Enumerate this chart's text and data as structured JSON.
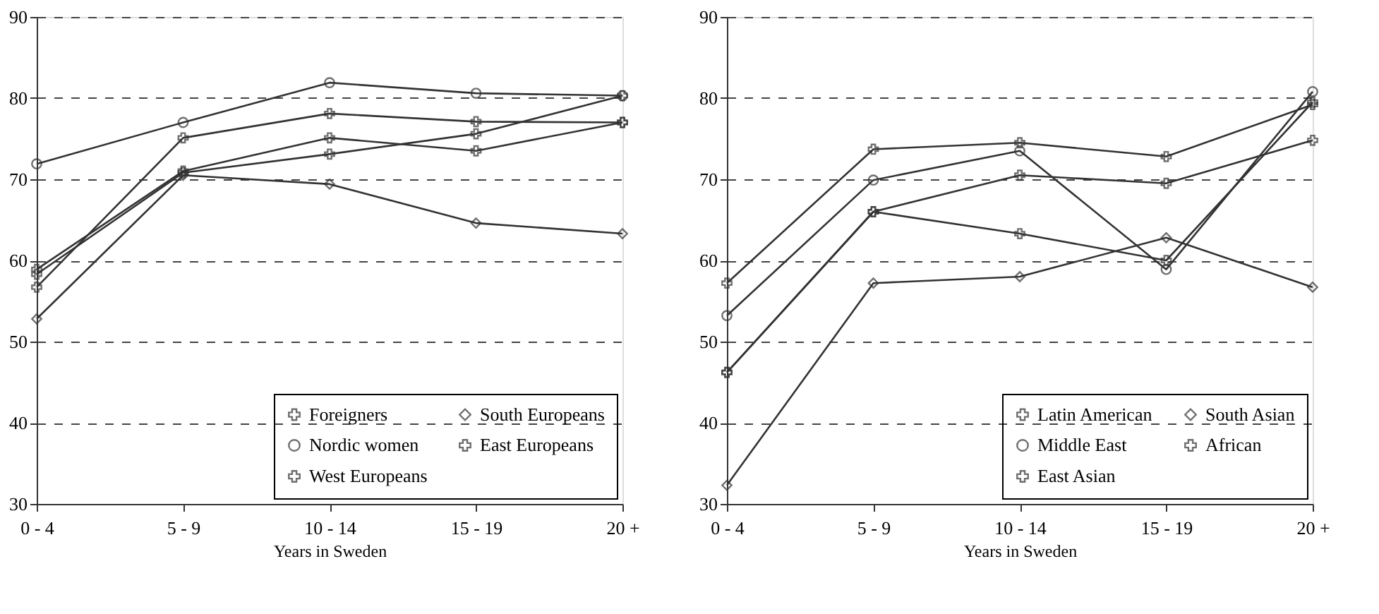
{
  "chart_data": [
    {
      "type": "line",
      "xlabel": "Years in Sweden",
      "categories": [
        "0 - 4",
        "5 - 9",
        "10 - 14",
        "15 - 19",
        "20 +"
      ],
      "ylim": [
        30,
        90
      ],
      "yticks": [
        30,
        40,
        50,
        60,
        70,
        80,
        90
      ],
      "grid": "y",
      "legend": "bottom right",
      "series": [
        {
          "name": "Foreigners",
          "color": "#333333",
          "marker": "cross",
          "values": [
            56.7,
            75.1,
            78.1,
            77.1,
            77
          ]
        },
        {
          "name": "Nordic women",
          "color": "#333333",
          "marker": "circle",
          "values": [
            71.9,
            77,
            81.9,
            80.6,
            80.3
          ]
        },
        {
          "name": "West Europeans",
          "color": "#333333",
          "marker": "cross",
          "values": [
            58.9,
            71,
            75.1,
            73.5,
            77
          ]
        },
        {
          "name": "South Europeans",
          "color": "#333333",
          "marker": "diamond",
          "values": [
            52.8,
            70.5,
            69.4,
            64.6,
            63.3
          ]
        },
        {
          "name": "East Europeans",
          "color": "#333333",
          "marker": "cross",
          "values": [
            58.3,
            70.8,
            73.1,
            75.6,
            80.3
          ]
        }
      ]
    },
    {
      "type": "line",
      "xlabel": "Years in Sweden",
      "categories": [
        "0 - 4",
        "5 - 9",
        "10 - 14",
        "15 - 19",
        "20 +"
      ],
      "ylim": [
        30,
        90
      ],
      "yticks": [
        30,
        40,
        50,
        60,
        70,
        80,
        90
      ],
      "grid": "y",
      "legend": "bottom right",
      "series": [
        {
          "name": "Latin American",
          "color": "#333333",
          "marker": "cross",
          "values": [
            57.2,
            73.7,
            74.5,
            72.8,
            79.2
          ]
        },
        {
          "name": "Middle East",
          "color": "#333333",
          "marker": "circle",
          "values": [
            53.2,
            69.9,
            73.5,
            58.9,
            80.8
          ]
        },
        {
          "name": "East Asian",
          "color": "#333333",
          "marker": "cross",
          "values": [
            46.2,
            66,
            70.5,
            69.5,
            74.8
          ]
        },
        {
          "name": "South Asian",
          "color": "#333333",
          "marker": "diamond",
          "values": [
            32.3,
            57.2,
            58,
            62.8,
            56.7
          ]
        },
        {
          "name": "African",
          "color": "#333333",
          "marker": "cross",
          "values": [
            46.2,
            66,
            63.3,
            60,
            79.5
          ]
        }
      ]
    }
  ]
}
